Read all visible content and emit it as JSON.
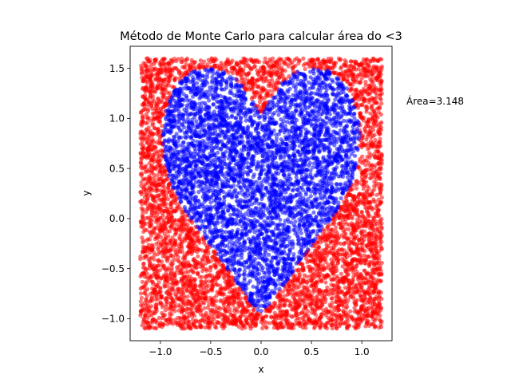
{
  "chart_data": {
    "type": "scatter",
    "title": "Método de Monte Carlo para calcular área do <3",
    "xlabel": "x",
    "ylabel": "y",
    "xlim": [
      -1.3,
      1.3
    ],
    "ylim": [
      -1.22,
      1.72
    ],
    "xticks": [
      -1.0,
      -0.5,
      0.0,
      0.5,
      1.0
    ],
    "xtick_labels": [
      "−1.0",
      "−0.5",
      "0.0",
      "0.5",
      "1.0"
    ],
    "yticks": [
      -1.0,
      -0.5,
      0.0,
      0.5,
      1.0,
      1.5
    ],
    "ytick_labels": [
      "−1.0",
      "−0.5",
      "0.0",
      "0.5",
      "1.0",
      "1.5"
    ],
    "sampling_region": {
      "x": [
        -1.2,
        1.2
      ],
      "y": [
        -1.1,
        1.6
      ]
    },
    "heart_outline": [
      [
        0.0,
        1.02
      ],
      [
        0.04,
        1.09
      ],
      [
        0.09,
        1.19
      ],
      [
        0.17,
        1.31
      ],
      [
        0.27,
        1.41
      ],
      [
        0.37,
        1.47
      ],
      [
        0.5,
        1.5
      ],
      [
        0.63,
        1.49
      ],
      [
        0.74,
        1.44
      ],
      [
        0.84,
        1.33
      ],
      [
        0.9,
        1.2
      ],
      [
        0.95,
        1.05
      ],
      [
        0.98,
        0.9
      ],
      [
        0.97,
        0.65
      ],
      [
        0.92,
        0.4
      ],
      [
        0.83,
        0.2
      ],
      [
        0.7,
        0.0
      ],
      [
        0.53,
        -0.22
      ],
      [
        0.37,
        -0.45
      ],
      [
        0.22,
        -0.67
      ],
      [
        0.09,
        -0.85
      ],
      [
        0.0,
        -0.95
      ],
      [
        -0.09,
        -0.85
      ],
      [
        -0.22,
        -0.67
      ],
      [
        -0.37,
        -0.45
      ],
      [
        -0.53,
        -0.22
      ],
      [
        -0.7,
        0.0
      ],
      [
        -0.83,
        0.2
      ],
      [
        -0.92,
        0.4
      ],
      [
        -0.97,
        0.65
      ],
      [
        -0.98,
        0.9
      ],
      [
        -0.95,
        1.05
      ],
      [
        -0.9,
        1.2
      ],
      [
        -0.84,
        1.33
      ],
      [
        -0.74,
        1.44
      ],
      [
        -0.63,
        1.49
      ],
      [
        -0.5,
        1.5
      ],
      [
        -0.37,
        1.47
      ],
      [
        -0.27,
        1.41
      ],
      [
        -0.17,
        1.31
      ],
      [
        -0.09,
        1.19
      ],
      [
        -0.04,
        1.09
      ]
    ],
    "series": [
      {
        "color": "#ff0000",
        "description": "outside"
      },
      {
        "color": "#0000ff",
        "description": "inside"
      }
    ],
    "n_points": 9000,
    "annotation": "Área=3.148"
  }
}
